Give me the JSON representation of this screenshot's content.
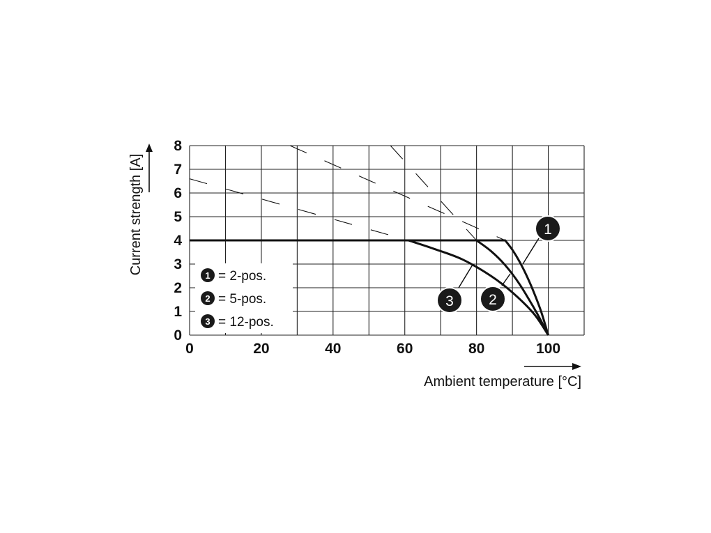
{
  "chart_data": {
    "type": "line",
    "xlabel": "Ambient temperature [°C]",
    "ylabel": "Current strength [A]",
    "xlim": [
      0,
      110
    ],
    "ylim": [
      0,
      8
    ],
    "x_ticks": [
      "0",
      "20",
      "40",
      "60",
      "80",
      "100"
    ],
    "y_ticks": [
      "0",
      "1",
      "2",
      "3",
      "4",
      "5",
      "6",
      "7",
      "8"
    ],
    "grid": true,
    "legend_position": "bottom-left",
    "series": [
      {
        "name": "2-pos.",
        "marker": "1",
        "x": [
          0,
          88,
          90,
          92,
          94,
          96,
          98,
          100
        ],
        "y": [
          4,
          4,
          3.6,
          3.1,
          2.5,
          1.8,
          1.0,
          0
        ],
        "derating_dashed": {
          "x": [
            28,
            88
          ],
          "y": [
            8,
            4
          ]
        }
      },
      {
        "name": "5-pos.",
        "marker": "2",
        "x": [
          0,
          80,
          84,
          88,
          92,
          96,
          98,
          100
        ],
        "y": [
          4,
          4,
          3.55,
          2.95,
          2.15,
          1.15,
          0.6,
          0
        ],
        "derating_dashed": {
          "x": [
            56,
            80
          ],
          "y": [
            8,
            4
          ]
        }
      },
      {
        "name": "12-pos.",
        "marker": "3",
        "x": [
          0,
          61,
          68,
          76,
          84,
          90,
          96,
          100
        ],
        "y": [
          4,
          4,
          3.65,
          3.2,
          2.5,
          1.8,
          0.9,
          0
        ],
        "derating_dashed": {
          "x": [
            0,
            61
          ],
          "y": [
            6.6,
            4
          ]
        }
      }
    ],
    "legend": [
      {
        "marker": "1",
        "label": "= 2-pos."
      },
      {
        "marker": "2",
        "label": "= 5-pos."
      },
      {
        "marker": "3",
        "label": "= 12-pos."
      }
    ],
    "colors": {
      "line": "#111111",
      "grid": "#222222",
      "badge": "#1a1a1a"
    }
  }
}
